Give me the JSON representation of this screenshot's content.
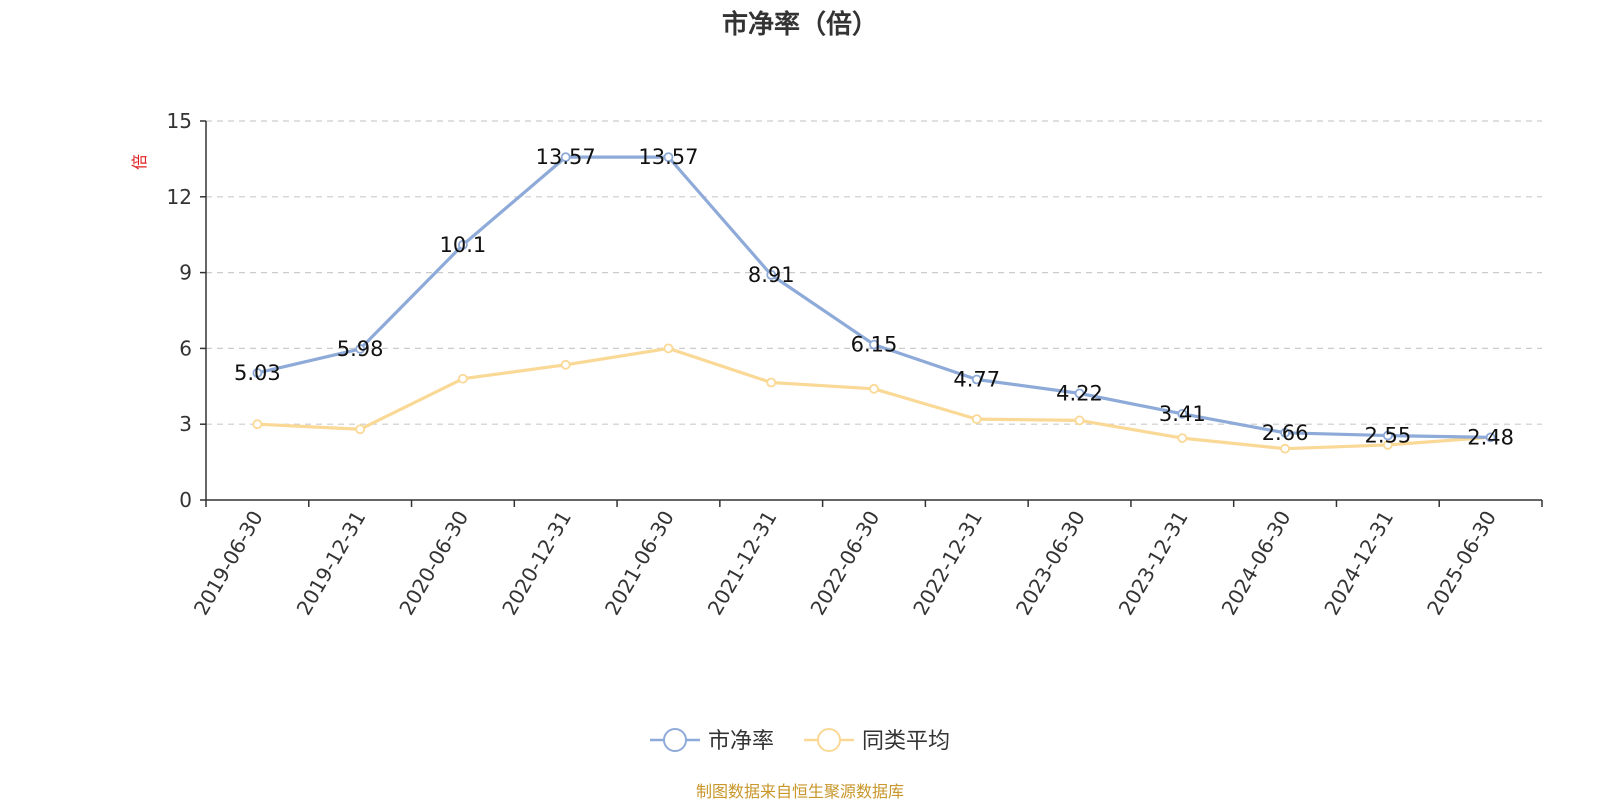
{
  "chart_data": {
    "type": "line",
    "title": "市净率（倍）",
    "ylabel": "倍",
    "ylim": [
      0,
      15
    ],
    "yticks": [
      0,
      3,
      6,
      9,
      12,
      15
    ],
    "grid": true,
    "legend_placement": "bottom-center",
    "categories": [
      "2019-06-30",
      "2019-12-31",
      "2020-06-30",
      "2020-12-31",
      "2021-06-30",
      "2021-12-31",
      "2022-06-30",
      "2022-12-31",
      "2023-06-30",
      "2023-12-31",
      "2024-06-30",
      "2024-12-31",
      "2025-06-30"
    ],
    "series": [
      {
        "name": "市净率",
        "color": "#8eaad8",
        "values": [
          5.03,
          5.98,
          10.1,
          13.57,
          13.57,
          8.91,
          6.15,
          4.77,
          4.22,
          3.41,
          2.66,
          2.55,
          2.48
        ],
        "labels": [
          "5.03",
          "5.98",
          "10.1",
          "13.57",
          "13.57",
          "8.91",
          "6.15",
          "4.77",
          "4.22",
          "3.41",
          "2.66",
          "2.55",
          "2.48"
        ]
      },
      {
        "name": "同类平均",
        "color": "#fad896",
        "values": [
          3.0,
          2.8,
          4.8,
          5.35,
          6.0,
          4.65,
          4.4,
          3.2,
          3.15,
          2.45,
          2.03,
          2.18,
          2.48
        ]
      }
    ],
    "source": "制图数据来自恒生聚源数据库"
  }
}
